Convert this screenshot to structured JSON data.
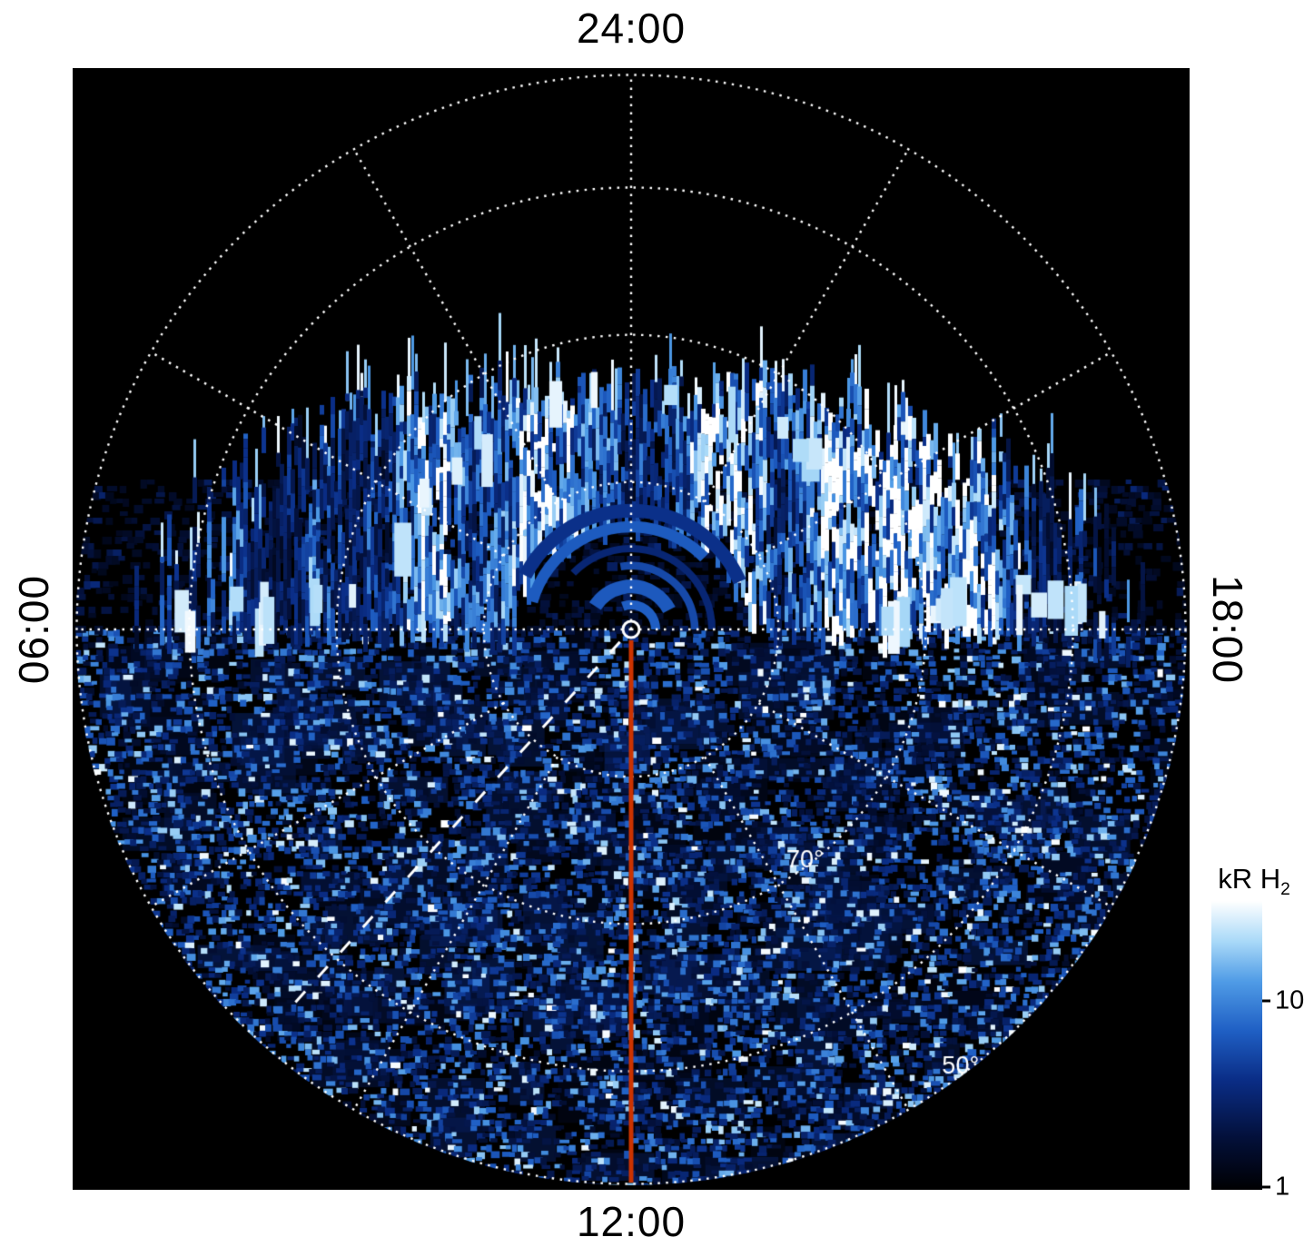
{
  "page": {
    "background": "#ffffff"
  },
  "plot": {
    "bg_color": "#000000",
    "grid_color": "#ffffff",
    "time_labels": {
      "top": "24:00",
      "bottom": "12:00",
      "left": "06:00",
      "right": "18:00"
    }
  },
  "chart_data": {
    "type": "heatmap",
    "projection": "polar",
    "title": "",
    "description": "Polar-projection map of H2 auroral emission brightness versus latitude and local time. A bright patchy auroral band of vertical streaks crosses the top (night/dusk-dawn) half between roughly 60 and 75 degrees latitude; weak noisy speckle emission of 1-15 kR covers the bottom (dayside) half of the disk out to the 50-degree rim; the high-latitude region above the band is black (no emission).",
    "angular_axis": {
      "unit": "local time",
      "labels": [
        {
          "text": "24:00",
          "angle_deg": 0
        },
        {
          "text": "18:00",
          "angle_deg": 90
        },
        {
          "text": "12:00",
          "angle_deg": 180
        },
        {
          "text": "06:00",
          "angle_deg": 270
        }
      ],
      "radial_lines_every_deg": 30
    },
    "radial_axis": {
      "unit": "latitude",
      "pole_deg": 90,
      "rim_deg": 50,
      "rings": [
        {
          "latitude_deg": 80,
          "radius_frac": 0.265
        },
        {
          "latitude_deg": 70,
          "radius_frac": 0.53
        },
        {
          "latitude_deg": 60,
          "radius_frac": 0.795
        },
        {
          "latitude_deg": 50,
          "radius_frac": 1.0
        }
      ],
      "ring_labels": [
        {
          "text": "70°",
          "radius_frac": 0.52
        },
        {
          "text": "50°",
          "radius_frac": 0.985
        }
      ],
      "ring_label_angle_deg": 143
    },
    "colorbar": {
      "label": "kR H",
      "label_sub": "2",
      "scale": "log",
      "min_value": 1,
      "max_value": 30,
      "ticks": [
        {
          "value": "10",
          "frac_from_bottom": 0.655
        },
        {
          "value": "1",
          "frac_from_bottom": 0.01
        }
      ],
      "colormap_stops": [
        {
          "t": 0.0,
          "color": "#000002"
        },
        {
          "t": 0.18,
          "color": "#03103a"
        },
        {
          "t": 0.38,
          "color": "#0a2d86"
        },
        {
          "t": 0.55,
          "color": "#1f5fc4"
        },
        {
          "t": 0.72,
          "color": "#4f9be6"
        },
        {
          "t": 0.86,
          "color": "#a9d9f8"
        },
        {
          "t": 1.0,
          "color": "#ffffff"
        }
      ]
    },
    "features": {
      "auroral_band": {
        "latitude_range_deg": [
          58,
          77
        ],
        "local_time_span": "dusk through midnight to dawn (top half of disk)",
        "character": "bright patchy vertical streaks, brightest ~30 kR, dimmer notch around the pole near midnight"
      },
      "dayside_speckle": {
        "region": "bottom half of disk down to 50-degree rim",
        "character": "noisy speckled emission ~1-15 kR with black gaps"
      },
      "noon_meridian_line": {
        "color": "#cc3300",
        "from": "pole",
        "to": "12:00 rim"
      },
      "dashed_guide_line": {
        "color": "#ffffff",
        "angle_deg": 222,
        "radius_frac_range": [
          0.03,
          0.93
        ]
      },
      "pole_marker": {
        "shape": "small circle outline",
        "color": "#ffffff"
      }
    },
    "render_seed": 1337
  }
}
